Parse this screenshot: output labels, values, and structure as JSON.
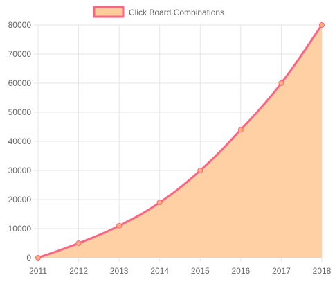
{
  "chart_data": {
    "type": "area",
    "title": "",
    "xlabel": "",
    "ylabel": "",
    "x": [
      "2011",
      "2012",
      "2013",
      "2014",
      "2015",
      "2016",
      "2017",
      "2018"
    ],
    "series": [
      {
        "name": "Click Board Combinations",
        "values": [
          0,
          5000,
          11000,
          19000,
          30000,
          44000,
          60000,
          80000
        ]
      }
    ],
    "ylim": [
      0,
      80000
    ],
    "yticks": [
      "0",
      "10000",
      "20000",
      "30000",
      "40000",
      "50000",
      "60000",
      "70000",
      "80000"
    ],
    "grid": true,
    "legend_position": "top",
    "colors": {
      "line": "#ff6384",
      "fill": "#ffcd9e",
      "point_fill": "#ffb07a",
      "legend_fill": "#ffcb9a",
      "grid": "#e6e6e6",
      "axis_text": "#666666"
    }
  }
}
